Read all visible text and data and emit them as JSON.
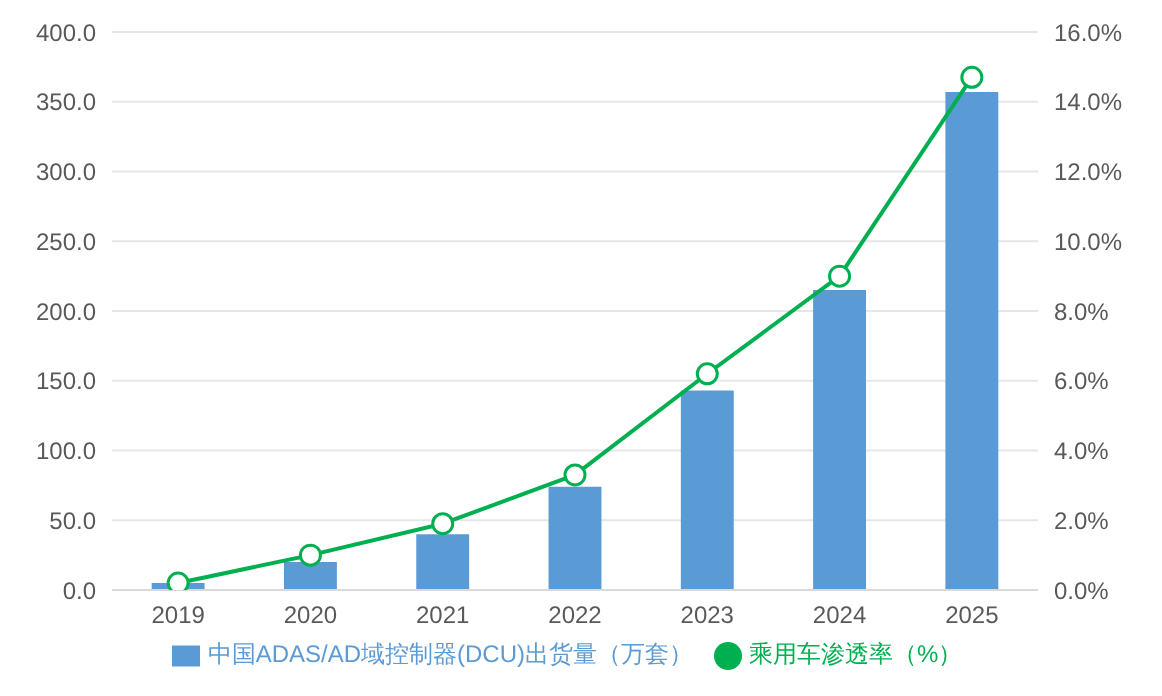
{
  "chart_data": {
    "type": "bar",
    "categories": [
      "2019",
      "2020",
      "2021",
      "2022",
      "2023",
      "2024",
      "2025"
    ],
    "series": [
      {
        "name": "中国ADAS/AD域控制器(DCU)出货量（万套）",
        "color": "#5b9bd5",
        "values": [
          5,
          20,
          40,
          74,
          143,
          215,
          357
        ]
      },
      {
        "name": "乘用车渗透率（%）",
        "type": "line",
        "axis": "y2",
        "color": "#00b050",
        "marker": "circle",
        "values": [
          0.2,
          1.0,
          1.9,
          3.3,
          6.2,
          9.0,
          14.7
        ]
      }
    ],
    "ylim": [
      0,
      400
    ],
    "yticks": [
      {
        "value": 0,
        "label": "0.0"
      },
      {
        "value": 50,
        "label": "50.0"
      },
      {
        "value": 100,
        "label": "100.0"
      },
      {
        "value": 150,
        "label": "150.0"
      },
      {
        "value": 200,
        "label": "200.0"
      },
      {
        "value": 250,
        "label": "250.0"
      },
      {
        "value": 300,
        "label": "300.0"
      },
      {
        "value": 350,
        "label": "350.0"
      },
      {
        "value": 400,
        "label": "400.0"
      }
    ],
    "y2lim": [
      0,
      16
    ],
    "y2ticks": [
      {
        "value": 0,
        "label": "0.0%"
      },
      {
        "value": 2,
        "label": "2.0%"
      },
      {
        "value": 4,
        "label": "4.0%"
      },
      {
        "value": 6,
        "label": "6.0%"
      },
      {
        "value": 8,
        "label": "8.0%"
      },
      {
        "value": 10,
        "label": "10.0%"
      },
      {
        "value": 12,
        "label": "12.0%"
      },
      {
        "value": 14,
        "label": "14.0%"
      },
      {
        "value": 16,
        "label": "16.0%"
      }
    ],
    "grid": "y",
    "legend": "bottom"
  }
}
